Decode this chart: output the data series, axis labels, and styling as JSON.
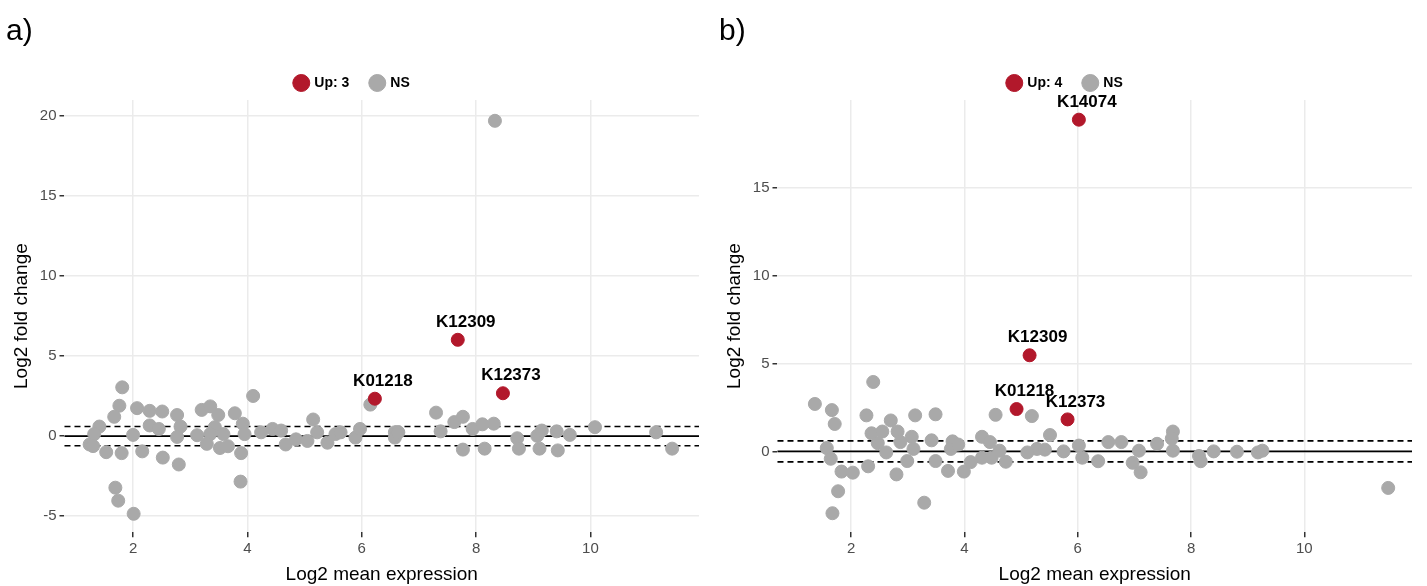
{
  "chart_data": [
    {
      "type": "scatter",
      "title": "a)",
      "xlabel": "Log2 mean expression",
      "ylabel": "Log2 fold change",
      "xlim": [
        0.8,
        11.9
      ],
      "ylim": [
        -6,
        21
      ],
      "xticks": [
        2,
        4,
        6,
        8,
        10
      ],
      "yticks": [
        -5,
        0,
        5,
        10,
        15,
        20
      ],
      "grid": true,
      "legend": "top",
      "marker": "circle",
      "series": [
        {
          "name": "Up: 3",
          "color": "#b2182b",
          "x": [
            6.23,
            7.68,
            8.47
          ],
          "values": [
            2.34,
            6.02,
            2.68
          ]
        },
        {
          "name": "NS",
          "color": "#a9a9a9",
          "x": [
            1.81,
            1.76,
            1.67,
            1.41,
            1.32,
            1.24,
            1.3,
            1.53,
            1.8,
            2.0,
            2.07,
            2.29,
            2.51,
            2.29,
            2.45,
            2.16,
            2.52,
            2.77,
            2.83,
            2.77,
            2.8,
            3.12,
            3.2,
            3.35,
            3.49,
            3.43,
            3.35,
            3.29,
            3.52,
            3.66,
            3.58,
            3.78,
            3.92,
            3.95,
            3.89,
            3.88,
            4.1,
            4.24,
            4.44,
            4.59,
            4.67,
            4.85,
            5.05,
            5.15,
            5.22,
            5.4,
            5.54,
            5.63,
            5.89,
            5.97,
            6.15,
            6.58,
            6.58,
            1.69,
            1.74,
            2.01,
            7.3,
            7.62,
            7.77,
            7.38,
            7.94,
            8.11,
            8.31,
            7.77,
            8.15,
            8.72,
            8.75,
            9.07,
            9.15,
            9.11,
            9.41,
            9.43,
            9.64,
            10.08,
            11.15,
            11.43,
            6.64,
            8.33
          ],
          "values": [
            3.05,
            1.9,
            1.21,
            0.6,
            0.13,
            -0.52,
            -0.62,
            -1.0,
            -1.06,
            0.08,
            1.75,
            1.58,
            1.54,
            0.67,
            0.45,
            -0.95,
            -1.34,
            1.32,
            0.6,
            -0.05,
            -1.77,
            0.06,
            1.64,
            1.86,
            1.32,
            0.56,
            0.13,
            -0.48,
            -0.74,
            -0.63,
            0.13,
            1.43,
            0.78,
            0.13,
            -1.06,
            -2.84,
            2.51,
            0.24,
            0.45,
            0.35,
            -0.52,
            -0.2,
            -0.3,
            1.04,
            0.24,
            -0.41,
            0.13,
            0.24,
            -0.09,
            0.45,
            1.97,
            0.24,
            -0.09,
            -3.22,
            -4.03,
            -4.85,
            1.47,
            0.88,
            1.21,
            0.3,
            0.45,
            0.74,
            0.78,
            -0.84,
            -0.78,
            -0.13,
            -0.78,
            0.02,
            0.35,
            -0.78,
            0.3,
            -0.89,
            0.08,
            0.56,
            0.24,
            -0.78,
            0.24,
            19.7
          ]
        }
      ],
      "ref_lines": [
        {
          "axis": "y",
          "value": 0,
          "line_style": "solid",
          "color": "#000000"
        },
        {
          "axis": "y",
          "value": 0.6,
          "line_style": "dashed",
          "color": "#000000"
        },
        {
          "axis": "y",
          "value": -0.6,
          "line_style": "dashed",
          "color": "#000000"
        }
      ],
      "annotations": [
        {
          "text": "K01218",
          "x": 6.23,
          "y": 2.34
        },
        {
          "text": "K12309",
          "x": 7.68,
          "y": 6.02
        },
        {
          "text": "K12373",
          "x": 8.47,
          "y": 2.68
        }
      ]
    },
    {
      "type": "scatter",
      "title": "b)",
      "xlabel": "Log2 mean expression",
      "ylabel": "Log2 fold change",
      "xlim": [
        0.7,
        11.9
      ],
      "ylim": [
        -4.6,
        20
      ],
      "xticks": [
        2,
        4,
        6,
        8,
        10
      ],
      "yticks": [
        0,
        5,
        10,
        15
      ],
      "grid": true,
      "legend": "top",
      "marker": "circle",
      "series": [
        {
          "name": "Up: 4",
          "color": "#b2182b",
          "x": [
            4.92,
            5.15,
            5.82,
            6.02
          ],
          "values": [
            2.41,
            5.47,
            1.82,
            18.88
          ]
        },
        {
          "name": "NS",
          "color": "#a9a9a9",
          "x": [
            1.36,
            1.66,
            1.71,
            1.57,
            1.64,
            1.83,
            2.03,
            1.77,
            1.67,
            2.39,
            2.27,
            2.3,
            2.36,
            2.55,
            2.47,
            2.62,
            2.7,
            2.82,
            2.8,
            2.87,
            2.99,
            3.07,
            3.1,
            3.13,
            3.29,
            3.42,
            3.49,
            3.49,
            3.71,
            3.79,
            3.76,
            3.89,
            3.99,
            4.11,
            4.31,
            4.31,
            4.45,
            4.48,
            4.62,
            4.73,
            4.55,
            5.19,
            5.51,
            5.28,
            5.11,
            5.42,
            5.75,
            6.02,
            6.08,
            6.36,
            6.54,
            6.77,
            6.97,
            7.08,
            7.11,
            7.4,
            7.68,
            7.66,
            7.68,
            8.14,
            8.17,
            8.4,
            8.81,
            9.18,
            9.26,
            11.48
          ],
          "values": [
            2.7,
            2.35,
            1.56,
            0.19,
            -0.42,
            -1.15,
            -1.21,
            -2.27,
            -3.52,
            3.95,
            2.05,
            -0.85,
            1.03,
            1.13,
            0.47,
            -0.06,
            1.76,
            1.13,
            -1.31,
            0.53,
            -0.55,
            0.83,
            0.14,
            2.05,
            -2.92,
            0.63,
            2.11,
            -0.55,
            -1.11,
            0.57,
            0.14,
            0.39,
            -1.15,
            -0.61,
            0.83,
            -0.36,
            0.53,
            -0.36,
            0.04,
            -0.59,
            2.08,
            2.01,
            0.93,
            0.14,
            -0.06,
            0.1,
            0.0,
            0.33,
            -0.36,
            -0.56,
            0.53,
            0.53,
            -0.65,
            0.04,
            -1.19,
            0.43,
            1.13,
            0.73,
            0.04,
            -0.26,
            -0.56,
            0.0,
            -0.02,
            -0.06,
            0.04,
            -2.08
          ]
        }
      ],
      "ref_lines": [
        {
          "axis": "y",
          "value": 0,
          "line_style": "solid",
          "color": "#000000"
        },
        {
          "axis": "y",
          "value": 0.6,
          "line_style": "dashed",
          "color": "#000000"
        },
        {
          "axis": "y",
          "value": -0.6,
          "line_style": "dashed",
          "color": "#000000"
        }
      ],
      "annotations": [
        {
          "text": "K01218",
          "x": 4.92,
          "y": 2.41
        },
        {
          "text": "K12309",
          "x": 5.15,
          "y": 5.47
        },
        {
          "text": "K12373",
          "x": 5.82,
          "y": 1.82
        },
        {
          "text": "K14074",
          "x": 6.02,
          "y": 18.88
        }
      ]
    }
  ]
}
